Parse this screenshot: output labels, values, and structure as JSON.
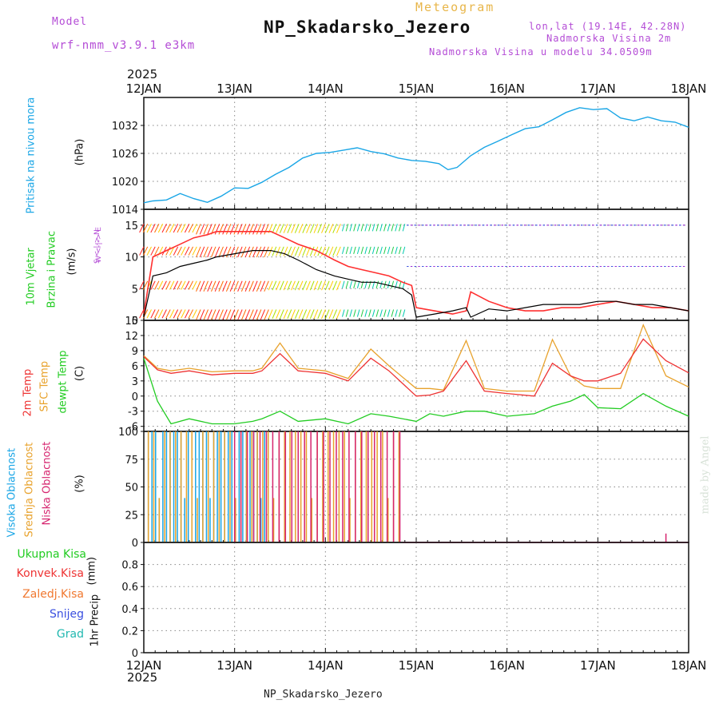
{
  "header": {
    "model_label": "Model",
    "model_name": "wrf-nmm_v3.9.1 e3km",
    "product": "Meteogram",
    "station": "NP_Skadarsko_Jezero",
    "coords": "lon,lat (19.14E, 42.28N)",
    "elevation": "Nadmorska Visina 2m",
    "model_elevation": "Nadmorska Visina u modelu 34.0509m",
    "footer_station": "NP_Skadarsko_Jezero",
    "signature": "made by Angel",
    "year_top": "2025",
    "year_bottom": "2025"
  },
  "colors": {
    "pressure": "#1aa6e6",
    "speed": "#000000",
    "gust": "#ff3030",
    "t2m": "#ee3333",
    "tsfc": "#e8a22c",
    "dewpt": "#22cc22",
    "high_cloud": "#1aa6e6",
    "mid_cloud": "#e8a22c",
    "low_cloud": "#d6246e",
    "grid": "#888888"
  },
  "chart_data": [
    {
      "type": "line",
      "panel": "pressure",
      "ylabel_name": "Pritisak na nivou mora",
      "ylabel_unit": "(hPa)",
      "ylim": [
        1014,
        1038
      ],
      "yticks": [
        1014,
        1020,
        1026,
        1032
      ],
      "x_days": [
        "12JAN",
        "13JAN",
        "14JAN",
        "15JAN",
        "16JAN",
        "17JAN",
        "18JAN"
      ],
      "x": [
        0,
        0.1,
        0.25,
        0.4,
        0.55,
        0.7,
        0.85,
        1.0,
        1.15,
        1.3,
        1.45,
        1.6,
        1.75,
        1.9,
        2.05,
        2.2,
        2.35,
        2.5,
        2.65,
        2.8,
        2.95,
        3.1,
        3.25,
        3.35,
        3.45,
        3.6,
        3.75,
        3.9,
        4.05,
        4.2,
        4.35,
        4.5,
        4.65,
        4.8,
        4.95,
        5.1,
        5.25,
        5.4,
        5.55,
        5.7,
        5.85,
        6.0
      ],
      "values": [
        1015.4,
        1015.8,
        1016,
        1017.4,
        1016.3,
        1015.5,
        1016.8,
        1018.6,
        1018.5,
        1019.8,
        1021.5,
        1023,
        1025,
        1026,
        1026.2,
        1026.7,
        1027.2,
        1026.4,
        1025.9,
        1025,
        1024.5,
        1024.3,
        1023.8,
        1022.5,
        1023,
        1025.5,
        1027.3,
        1028.6,
        1030,
        1031.3,
        1031.7,
        1033.2,
        1034.8,
        1035.8,
        1035.4,
        1035.6,
        1033.6,
        1033,
        1033.8,
        1033,
        1032.7,
        1031.6
      ]
    },
    {
      "type": "line",
      "panel": "wind",
      "ylabel_name": "10m Vjetar",
      "ylabel_name2": "Brzina i Pravac",
      "ylabel_unit": "(m/s)",
      "direction_legend": "W <-|-> E",
      "direction_legend2": "S <-|-> N",
      "ylim": [
        0,
        17.5
      ],
      "yticks": [
        0,
        5,
        10,
        15
      ],
      "x": [
        0,
        0.1,
        0.25,
        0.4,
        0.55,
        0.7,
        0.8,
        1.0,
        1.2,
        1.4,
        1.55,
        1.7,
        1.9,
        2.1,
        2.25,
        2.4,
        2.55,
        2.7,
        2.85,
        2.95,
        3.0,
        3.2,
        3.4,
        3.55,
        3.6,
        3.8,
        4.0,
        4.2,
        4.4,
        4.6,
        4.8,
        5.0,
        5.2,
        5.4,
        5.6,
        5.8,
        6.0
      ],
      "series": [
        {
          "name": "speed",
          "values": [
            0.5,
            7,
            7.5,
            8.5,
            9,
            9.5,
            10,
            10.5,
            11,
            11,
            10.5,
            9.5,
            8,
            7,
            6.5,
            6,
            6,
            5.5,
            5,
            4,
            0.5,
            1,
            1.5,
            2,
            0.5,
            1.8,
            1.5,
            2,
            2.5,
            2.5,
            2.5,
            3,
            3,
            2.5,
            2.5,
            2,
            1.5
          ]
        },
        {
          "name": "gust",
          "values": [
            1,
            10,
            11,
            12,
            13,
            13.5,
            14,
            14,
            14,
            14,
            13,
            12,
            11,
            9.5,
            8.5,
            8,
            7.5,
            7,
            6,
            5.5,
            2,
            1.5,
            1,
            1.5,
            4.5,
            3,
            2,
            1.5,
            1.5,
            2,
            2,
            2.5,
            3,
            2.5,
            2,
            2,
            1.5
          ]
        }
      ]
    },
    {
      "type": "line",
      "panel": "temperature",
      "ylabel_name": "2m Temp",
      "ylabel_name2": "SFC Temp",
      "ylabel_name3": "dewpt Temp",
      "ylabel_unit": "(C)",
      "ylim": [
        -7,
        15
      ],
      "yticks": [
        -6,
        -3,
        0,
        3,
        6,
        9,
        12,
        15
      ],
      "x": [
        0,
        0.15,
        0.3,
        0.5,
        0.75,
        1.0,
        1.2,
        1.3,
        1.5,
        1.7,
        2.0,
        2.25,
        2.5,
        2.7,
        3.0,
        3.15,
        3.3,
        3.55,
        3.75,
        4.0,
        4.3,
        4.5,
        4.7,
        4.85,
        5.0,
        5.25,
        5.5,
        5.75,
        6.0
      ],
      "series": [
        {
          "name": "2m Temp",
          "values": [
            7.8,
            5.2,
            4.5,
            5,
            4.2,
            4.5,
            4.5,
            5,
            8.4,
            5,
            4.5,
            3,
            7.5,
            5,
            0,
            0.2,
            1,
            7,
            1,
            0.5,
            0,
            6.5,
            4,
            3,
            3,
            4.5,
            11.3,
            7,
            4.6
          ]
        },
        {
          "name": "SFC Temp",
          "values": [
            8,
            5.5,
            5,
            5.5,
            4.8,
            5,
            5,
            5.5,
            10.5,
            5.5,
            5,
            3.5,
            9.3,
            6,
            1.5,
            1.5,
            1.2,
            11,
            1.5,
            1,
            1,
            11.2,
            4,
            2,
            1.5,
            1.5,
            14.1,
            4,
            1.8
          ]
        },
        {
          "name": "dewpt Temp",
          "values": [
            7.5,
            -1,
            -5.5,
            -4.5,
            -5.5,
            -5.5,
            -5,
            -4.5,
            -3,
            -5,
            -4.5,
            -5.5,
            -3.5,
            -4,
            -5,
            -3.5,
            -4,
            -3,
            -3,
            -4,
            -3.5,
            -2,
            -1,
            0.3,
            -2.3,
            -2.5,
            0.5,
            -2,
            -4
          ]
        }
      ]
    },
    {
      "type": "bar",
      "panel": "clouds",
      "ylabel_name": "Visoka Oblacnost",
      "ylabel_name2": "Srednja Oblacnost",
      "ylabel_name3": "Niska Oblacnost",
      "ylabel_unit": "(%)",
      "ylim": [
        0,
        100
      ],
      "yticks": [
        0,
        25,
        50,
        75,
        100
      ],
      "series": [
        {
          "name": "Visoka Oblacnost",
          "start": 0.05,
          "end": 1.4,
          "step": 0.04,
          "value": 100
        },
        {
          "name": "Srednja Oblacnost",
          "start": 0.05,
          "end": 2.85,
          "step": 0.06,
          "value": 100
        },
        {
          "name": "Niska Oblacnost",
          "start": 1.0,
          "end": 2.85,
          "step": 0.07,
          "value": 100
        },
        {
          "name": "Niska Oblacnost late",
          "x": 5.75,
          "value": 8
        }
      ]
    },
    {
      "type": "bar",
      "panel": "precip",
      "ylabel_name": "1hr Precip",
      "ylabel_unit": "(mm)",
      "legend": [
        "Ukupna Kisa",
        "Konvek.Kisa",
        "Zaledj.Kisa",
        "Snijeg",
        "Grad"
      ],
      "ylim": [
        0,
        1
      ],
      "yticks": [
        0,
        0.2,
        0.4,
        0.6,
        0.8
      ],
      "values": []
    }
  ]
}
